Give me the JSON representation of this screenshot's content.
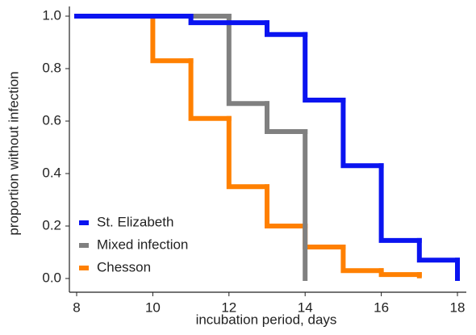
{
  "chart_data": {
    "type": "step",
    "xlabel": "incubation period, days",
    "ylabel": "proportion without infection",
    "xlim": [
      8,
      18
    ],
    "xticks": [
      8,
      10,
      12,
      14,
      16,
      18
    ],
    "ylim": [
      0,
      1
    ],
    "yticks": [
      {
        "value": 0,
        "label": "0.0"
      },
      0.2,
      0.4,
      0.6,
      0.8,
      {
        "value": 1,
        "label": "1.0"
      }
    ],
    "legend": "lower left",
    "series": [
      {
        "name": "St. Elizabeth",
        "color": "#0a14f0",
        "x": [
          8,
          11,
          13,
          14,
          15,
          16,
          17,
          18
        ],
        "values": [
          1.0,
          0.975,
          0.93,
          0.68,
          0.43,
          0.145,
          0.07,
          0.0
        ]
      },
      {
        "name": "Mixed infection",
        "color": "#808080",
        "x": [
          8,
          12,
          13,
          14
        ],
        "values": [
          1.0,
          0.667,
          0.56,
          0.0
        ]
      },
      {
        "name": "Chesson",
        "color": "#ff8000",
        "x": [
          10,
          10,
          11,
          12,
          13,
          14,
          15,
          16,
          17
        ],
        "values": [
          1.0,
          0.83,
          0.61,
          0.35,
          0.2,
          0.12,
          0.03,
          0.015,
          0.01
        ]
      }
    ]
  }
}
